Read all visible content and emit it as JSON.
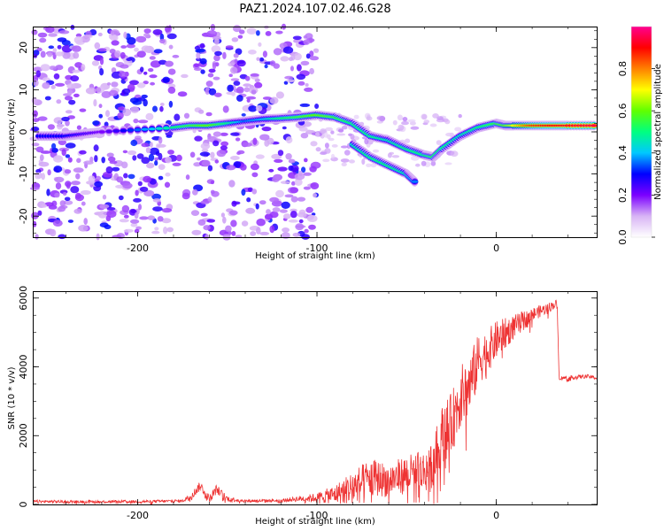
{
  "page": {
    "title": "PAZ1.2024.107.02.46.G28"
  },
  "chart_data": [
    {
      "type": "heatmap",
      "title": "PAZ1.2024.107.02.46.G28",
      "xlabel": "Height of straight line (km)",
      "ylabel": "Frequency (Hz)",
      "xlim": [
        -258,
        56
      ],
      "ylim": [
        -25,
        25
      ],
      "x_ticks": [
        -200,
        -100,
        0
      ],
      "x_tick_labels": [
        "-200",
        "-100",
        "0"
      ],
      "y_ticks": [
        -20,
        -10,
        0,
        10,
        20
      ],
      "y_tick_labels": [
        "-20",
        "-10",
        "0",
        "10",
        "20"
      ],
      "colorbar": {
        "label": "Normalized spectral amplitude",
        "range": [
          0.0,
          1.0
        ],
        "ticks": [
          0.0,
          0.2,
          0.4,
          0.6,
          0.8
        ],
        "tick_labels": [
          "0.0",
          "0.2",
          "0.4",
          "0.6",
          "0.8"
        ],
        "stops": [
          "#ffffff",
          "#d8b4f5",
          "#7b00ff",
          "#0000ff",
          "#00c8ff",
          "#00ff80",
          "#60ff00",
          "#ffff00",
          "#ff8000",
          "#ff0000",
          "#ff0090"
        ]
      },
      "ridge": {
        "x": [
          -255,
          -240,
          -230,
          -220,
          -180,
          -170,
          -160,
          -150,
          -140,
          -130,
          -120,
          -110,
          -100,
          -90,
          -80,
          -70,
          -60,
          -50,
          -40,
          -35,
          -30,
          -20,
          -10,
          0,
          5,
          10,
          20,
          30,
          40,
          56
        ],
        "y": [
          -1,
          -1,
          -0.5,
          0,
          1,
          1.5,
          1.5,
          2,
          2.5,
          3,
          3.2,
          3.5,
          4,
          3.5,
          2,
          -1,
          -2,
          -4,
          -5.5,
          -6,
          -4,
          -1,
          1,
          2,
          1.5,
          1.5,
          1.5,
          1.5,
          1.5,
          1.5
        ],
        "amplitude": [
          0.3,
          0.3,
          0.25,
          0.2,
          0.5,
          0.55,
          0.6,
          0.5,
          0.35,
          0.4,
          0.5,
          0.55,
          0.6,
          0.55,
          0.5,
          0.5,
          0.45,
          0.5,
          0.5,
          0.55,
          0.5,
          0.45,
          0.5,
          0.55,
          0.6,
          0.7,
          0.85,
          0.9,
          0.92,
          0.95
        ]
      },
      "secondary_ridge": {
        "x": [
          -80,
          -70,
          -60,
          -50,
          -45
        ],
        "y": [
          -3,
          -6,
          -8,
          -10,
          -12
        ],
        "amplitude": [
          0.45,
          0.5,
          0.5,
          0.45,
          0.35
        ]
      },
      "noise_band_x": [
        -258,
        -100
      ],
      "gap_x": [
        [
          -180,
          -168
        ],
        [
          -152,
          -155
        ]
      ]
    },
    {
      "type": "line",
      "xlabel": "Height of straight line (km)",
      "ylabel": "SNR (10 * v/v)",
      "xlim": [
        -258,
        56
      ],
      "ylim": [
        0,
        6200
      ],
      "x_ticks": [
        -200,
        -100,
        0
      ],
      "x_tick_labels": [
        "-200",
        "-100",
        "0"
      ],
      "y_ticks": [
        0,
        2000,
        4000,
        6000
      ],
      "y_tick_labels": [
        "0",
        "2000",
        "4000",
        "6000"
      ],
      "color": "#ee3333",
      "envelope": {
        "x": [
          -258,
          -200,
          -175,
          -170,
          -165,
          -160,
          -156,
          -150,
          -140,
          -120,
          -110,
          -100,
          -90,
          -80,
          -70,
          -60,
          -50,
          -40,
          -35,
          -30,
          -25,
          -20,
          -15,
          -10,
          -5,
          0,
          10,
          20,
          30,
          34,
          35,
          40,
          50,
          56
        ],
        "y": [
          100,
          100,
          120,
          300,
          600,
          200,
          500,
          200,
          120,
          130,
          200,
          250,
          400,
          700,
          1000,
          900,
          1100,
          1200,
          1500,
          2400,
          2700,
          3500,
          3800,
          4500,
          4700,
          5000,
          5300,
          5600,
          5800,
          5900,
          3700,
          3700,
          3750,
          3700
        ],
        "spread": [
          60,
          60,
          60,
          150,
          200,
          150,
          200,
          120,
          60,
          60,
          120,
          200,
          400,
          700,
          800,
          700,
          800,
          900,
          1000,
          1200,
          1300,
          1300,
          1300,
          1100,
          900,
          800,
          500,
          300,
          200,
          150,
          80,
          80,
          80,
          80
        ]
      }
    }
  ]
}
